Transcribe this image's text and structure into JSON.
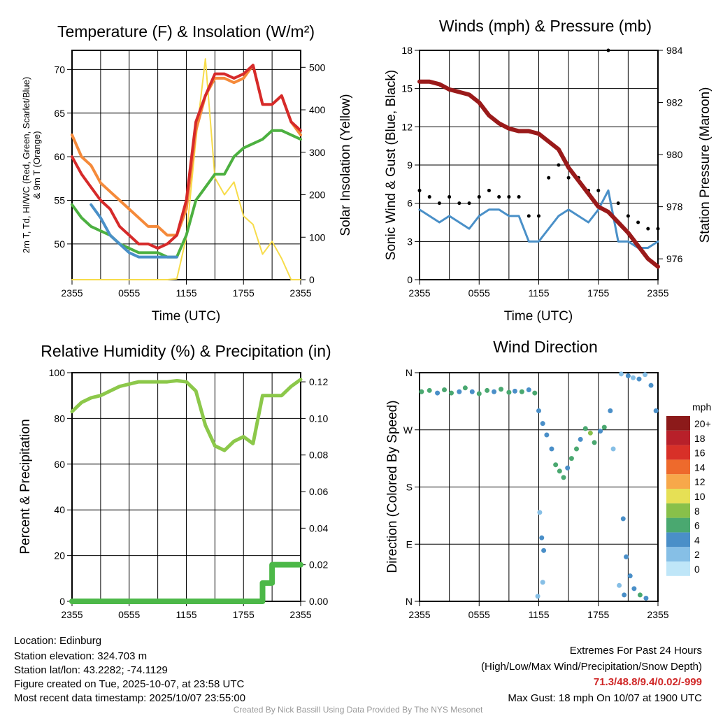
{
  "xticks": [
    "2355",
    "0555",
    "1155",
    "1755",
    "2355"
  ],
  "xlabel": "Time (UTC)",
  "panels": {
    "temp": {
      "title": "Temperature (F) & Insolation (W/m²)",
      "ylabel1": "2m T, Td, HI/WC (Red, Green, Scarlet/Blue)",
      "ylabel2": "& 9m T (Orange)",
      "ylabel_right": "Solar Insolation (Yellow)",
      "yticks": [
        "50",
        "55",
        "60",
        "65",
        "70"
      ],
      "yticks_right": [
        "0",
        "100",
        "200",
        "300",
        "400",
        "500"
      ]
    },
    "wind": {
      "title": "Winds (mph) & Pressure (mb)",
      "ylabel": "Sonic Wind & Gust (Blue, Black)",
      "ylabel_right": "Station Pressure (Maroon)",
      "yticks": [
        "0",
        "3",
        "6",
        "9",
        "12",
        "15",
        "18"
      ],
      "yticks_right": [
        "976",
        "978",
        "980",
        "982",
        "984"
      ]
    },
    "rh": {
      "title": "Relative Humidity (%) & Precipitation (in)",
      "ylabel": "Percent & Precipitation",
      "yticks": [
        "0",
        "20",
        "40",
        "60",
        "80",
        "100"
      ],
      "yticks_right": [
        "0.00",
        "0.02",
        "0.04",
        "0.06",
        "0.08",
        "0.10",
        "0.12"
      ]
    },
    "dir": {
      "title": "Wind Direction",
      "ylabel": "Direction (Colored By Speed)",
      "yticks": [
        "N",
        "E",
        "S",
        "W",
        "N"
      ],
      "colorbar_title": "mph",
      "colorbar_labels": [
        "0",
        "2",
        "4",
        "6",
        "8",
        "10",
        "12",
        "14",
        "16",
        "18",
        "20+"
      ],
      "colorbar_colors": [
        "#bfe6f8",
        "#86bfe6",
        "#4a8fc8",
        "#4aa870",
        "#88c04a",
        "#e6e055",
        "#f7a84a",
        "#ee6a2c",
        "#d83028",
        "#b8202a",
        "#8c1a1a"
      ]
    }
  },
  "chart_data": [
    {
      "type": "line",
      "title": "Temperature (F) & Insolation (W/m²)",
      "x_hours_from_2355": [
        0,
        1,
        2,
        3,
        4,
        5,
        6,
        7,
        8,
        9,
        10,
        11,
        12,
        13,
        14,
        15,
        16,
        17,
        18,
        19,
        20,
        21,
        22,
        23,
        24
      ],
      "ylim": [
        45.9,
        72.2
      ],
      "ylim_right": [
        0,
        540
      ],
      "series": [
        {
          "name": "2m T",
          "color": "#d62a2a",
          "axis": "left",
          "values": [
            60,
            58,
            56.5,
            55,
            54,
            52,
            51,
            50,
            50,
            49.5,
            50,
            51,
            55,
            64,
            67,
            69.5,
            69.5,
            69,
            69.5,
            70.5,
            66,
            66,
            67,
            64,
            63
          ]
        },
        {
          "name": "9m T",
          "color": "#f58a3a",
          "axis": "left",
          "values": [
            62.5,
            60,
            59,
            57,
            56,
            55,
            54,
            53,
            52,
            52,
            51,
            51,
            54,
            63,
            67,
            69,
            69,
            68.5,
            69,
            70.5,
            66,
            66,
            67,
            64,
            62.5
          ]
        },
        {
          "name": "Td",
          "color": "#4cb040",
          "axis": "left",
          "values": [
            54.5,
            53,
            52,
            51.5,
            51,
            50,
            49.5,
            49,
            49,
            49,
            48.5,
            48.5,
            51,
            55,
            56.5,
            58,
            58,
            60,
            61,
            61.5,
            62,
            63,
            63,
            62.5,
            62
          ]
        },
        {
          "name": "HI/WC",
          "color": "#4a90c8",
          "axis": "left",
          "values": [
            null,
            null,
            54.5,
            53,
            51,
            50,
            49,
            48.5,
            48.5,
            48.5,
            48.5,
            48.5,
            null,
            null,
            null,
            null,
            null,
            null,
            null,
            null,
            null,
            null,
            null,
            null,
            null
          ]
        },
        {
          "name": "Solar Insolation",
          "color": "#f7dc4a",
          "axis": "right",
          "values": [
            0,
            0,
            0,
            0,
            0,
            0,
            0,
            0,
            0,
            0,
            0,
            2,
            100,
            330,
            520,
            240,
            200,
            230,
            150,
            130,
            60,
            90,
            50,
            0,
            0
          ]
        }
      ]
    },
    {
      "type": "line",
      "title": "Winds (mph) & Pressure (mb)",
      "x_hours_from_2355": [
        0,
        1,
        2,
        3,
        4,
        5,
        6,
        7,
        8,
        9,
        10,
        11,
        12,
        13,
        14,
        15,
        16,
        17,
        18,
        19,
        20,
        21,
        22,
        23,
        24
      ],
      "ylim": [
        0,
        18
      ],
      "ylim_right": [
        975.2,
        984
      ],
      "series": [
        {
          "name": "Sonic Wind",
          "color": "#4a90c8",
          "axis": "left",
          "values": [
            5.5,
            5,
            4.5,
            5,
            4.5,
            4,
            5,
            5.5,
            5.5,
            5,
            5,
            3,
            3,
            4,
            5,
            5.5,
            5,
            4.5,
            5.5,
            7,
            3,
            3,
            2.5,
            2.5,
            3
          ]
        },
        {
          "name": "Gust",
          "color": "#000000",
          "axis": "left",
          "marker": "dot",
          "values": [
            7,
            6.5,
            6,
            6.5,
            6,
            6,
            6.5,
            7,
            6.5,
            6.5,
            6.5,
            5,
            5,
            8,
            9,
            8,
            8,
            7,
            7,
            18,
            6,
            5,
            4.5,
            4,
            4
          ]
        },
        {
          "name": "Station Pressure",
          "color": "#9a1a1a",
          "axis": "right",
          "values": [
            982.8,
            982.8,
            982.7,
            982.5,
            982.4,
            982.3,
            982,
            981.5,
            981.2,
            981,
            980.9,
            980.9,
            980.8,
            980.5,
            980.2,
            979.5,
            979,
            978.5,
            978,
            977.8,
            977.4,
            977,
            976.5,
            976,
            975.7
          ]
        }
      ]
    },
    {
      "type": "line",
      "title": "Relative Humidity (%) & Precipitation (in)",
      "x_hours_from_2355": [
        0,
        1,
        2,
        3,
        4,
        5,
        6,
        7,
        8,
        9,
        10,
        11,
        12,
        13,
        14,
        15,
        16,
        17,
        18,
        19,
        20,
        21,
        22,
        23,
        24
      ],
      "ylim": [
        0,
        100
      ],
      "ylim_right": [
        0,
        0.125
      ],
      "series": [
        {
          "name": "Relative Humidity",
          "color": "#8cc84a",
          "axis": "left",
          "values": [
            83,
            87,
            89,
            90,
            92,
            94,
            95,
            96,
            96,
            96,
            96,
            96.5,
            96,
            92,
            77,
            68,
            66,
            70,
            72,
            69,
            90,
            90,
            90,
            94,
            97
          ]
        },
        {
          "name": "Precipitation",
          "color": "#4cb848",
          "axis": "right",
          "values": [
            0,
            0,
            0,
            0,
            0,
            0,
            0,
            0,
            0,
            0,
            0,
            0,
            0,
            0,
            0,
            0,
            0,
            0,
            0,
            0,
            0.01,
            0.02,
            0.02,
            0.02,
            0.02
          ]
        }
      ]
    },
    {
      "type": "scatter",
      "title": "Wind Direction",
      "ylim_deg": [
        0,
        360
      ],
      "points_hour_deg_mph": [
        [
          0.2,
          330,
          5
        ],
        [
          1,
          332,
          5
        ],
        [
          1.8,
          328,
          4
        ],
        [
          2.5,
          333,
          6
        ],
        [
          3.2,
          328,
          5
        ],
        [
          4,
          330,
          4
        ],
        [
          4.6,
          336,
          5
        ],
        [
          5.3,
          330,
          4
        ],
        [
          6,
          327,
          6
        ],
        [
          6.8,
          332,
          5
        ],
        [
          7.5,
          330,
          4
        ],
        [
          8.2,
          334,
          5
        ],
        [
          9,
          329,
          6
        ],
        [
          9.6,
          331,
          4
        ],
        [
          10.3,
          330,
          5
        ],
        [
          11,
          333,
          4
        ],
        [
          11.6,
          328,
          5
        ],
        [
          12,
          300,
          3
        ],
        [
          12.4,
          280,
          4
        ],
        [
          12.8,
          262,
          3
        ],
        [
          13.3,
          240,
          4
        ],
        [
          13.7,
          215,
          5
        ],
        [
          14.1,
          205,
          6
        ],
        [
          14.5,
          195,
          5
        ],
        [
          14.9,
          210,
          4
        ],
        [
          15.3,
          225,
          6
        ],
        [
          15.8,
          240,
          5
        ],
        [
          16.2,
          255,
          4
        ],
        [
          16.7,
          272,
          6
        ],
        [
          17.2,
          265,
          7
        ],
        [
          17.6,
          250,
          6
        ],
        [
          18.2,
          268,
          4
        ],
        [
          18.6,
          274,
          5
        ],
        [
          19.2,
          300,
          3
        ],
        [
          19.5,
          240,
          2
        ],
        [
          20.3,
          358,
          2
        ],
        [
          21,
          355,
          3
        ],
        [
          21.5,
          352,
          2
        ],
        [
          22.1,
          350,
          3
        ],
        [
          22.7,
          357,
          2
        ],
        [
          23.3,
          340,
          3
        ],
        [
          23.8,
          300,
          4
        ],
        [
          12.1,
          140,
          2
        ],
        [
          12.3,
          100,
          3
        ],
        [
          12.5,
          80,
          3
        ],
        [
          12.4,
          30,
          2
        ],
        [
          11.9,
          8,
          1
        ],
        [
          20.5,
          130,
          4
        ],
        [
          20.8,
          70,
          4
        ],
        [
          21.2,
          40,
          3
        ],
        [
          21.6,
          20,
          4
        ],
        [
          22.2,
          10,
          5
        ],
        [
          22.8,
          5,
          3
        ],
        [
          20.1,
          25,
          2
        ],
        [
          20.6,
          10,
          3
        ]
      ]
    }
  ],
  "footer": {
    "location": "Location: Edinburg",
    "elevation": "Station elevation: 324.703 m",
    "latlon": "Station lat/lon: 43.2282; -74.1129",
    "created": "Figure created on Tue, 2025-10-07, at 23:58 UTC",
    "recent": "Most recent data timestamp: 2025/10/07 23:55:00",
    "extremes_title": "Extremes For Past 24 Hours",
    "extremes_fields": "(High/Low/Max Wind/Precipitation/Snow Depth)",
    "extremes_values": "71.3/48.8/9.4/0.02/-999",
    "max_gust": "Max Gust: 18 mph On 10/07 at 1900 UTC",
    "credit": "Created By Nick Bassill Using Data Provided By The NYS Mesonet"
  }
}
